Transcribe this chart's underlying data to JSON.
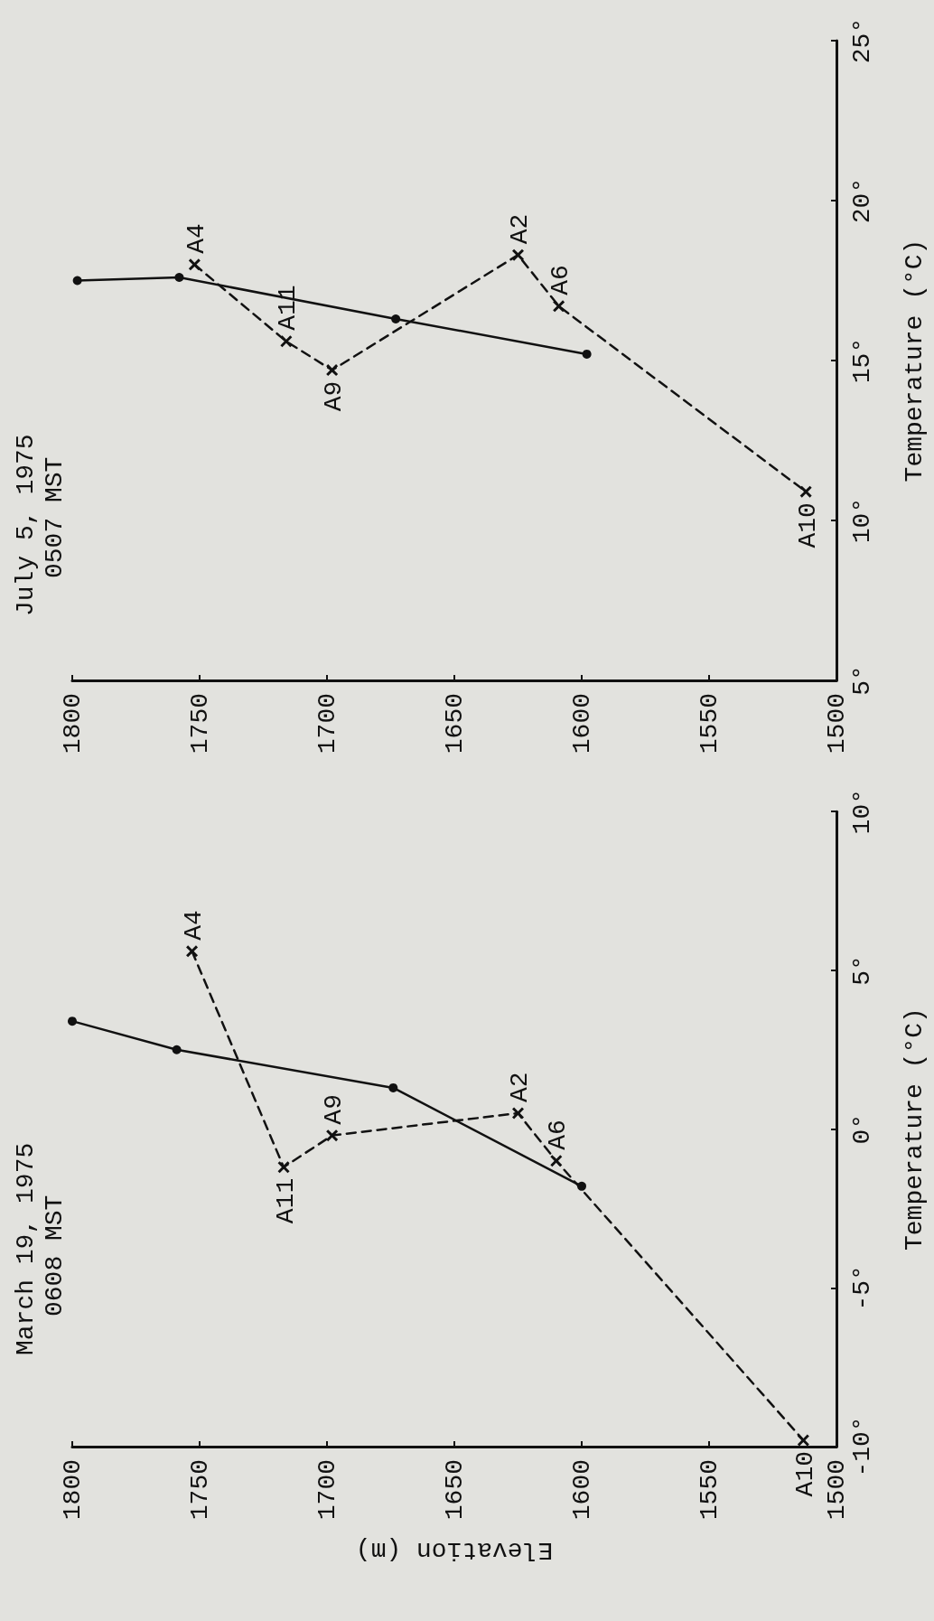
{
  "chart_data": [
    {
      "type": "line",
      "title": "March 19, 1975",
      "subtitle": "0608 MST",
      "xlabel": "Elevation (m)",
      "ylabel": "Temperature (°C)",
      "xlim": [
        1800,
        1500
      ],
      "xticks": [
        1800,
        1750,
        1700,
        1650,
        1600,
        1550,
        1500
      ],
      "ylim": [
        -10,
        10
      ],
      "yticks": [
        {
          "value": -10,
          "label": "-10°"
        },
        {
          "value": -5,
          "label": "-5°"
        },
        {
          "value": 0,
          "label": "0°"
        },
        {
          "value": 5,
          "label": "5°"
        },
        {
          "value": 10,
          "label": "10°"
        }
      ],
      "series": [
        {
          "color": "#111111",
          "marker": "circle",
          "line_style": "solid",
          "x": [
            1800,
            1759,
            1674,
            1600
          ],
          "values": [
            3.4,
            2.5,
            1.3,
            -1.8
          ]
        },
        {
          "color": "#111111",
          "marker": "cross",
          "line_style": "dashed",
          "x": [
            1753,
            1717,
            1698,
            1625,
            1610,
            1513
          ],
          "values": [
            5.6,
            -1.2,
            -0.2,
            0.5,
            -1.0,
            -9.8
          ]
        }
      ],
      "annotations": [
        {
          "text": "A4",
          "x": 1753,
          "y": 5.6
        },
        {
          "text": "A11",
          "x": 1717,
          "y": -1.2
        },
        {
          "text": "A9",
          "x": 1698,
          "y": -0.2
        },
        {
          "text": "A2",
          "x": 1625,
          "y": 0.5
        },
        {
          "text": "A6",
          "x": 1610,
          "y": -1.0
        },
        {
          "text": "A10",
          "x": 1513,
          "y": -9.8
        }
      ]
    },
    {
      "type": "line",
      "title": "July 5, 1975",
      "subtitle": "0507 MST",
      "ylabel": "Temperature (°C)",
      "xlim": [
        1800,
        1500
      ],
      "xticks": [
        1800,
        1750,
        1700,
        1650,
        1600,
        1550,
        1500
      ],
      "ylim": [
        5,
        25
      ],
      "yticks": [
        {
          "value": 5,
          "label": "5°"
        },
        {
          "value": 10,
          "label": "10°"
        },
        {
          "value": 15,
          "label": "15°"
        },
        {
          "value": 20,
          "label": "20°"
        },
        {
          "value": 25,
          "label": "25°"
        }
      ],
      "series": [
        {
          "color": "#111111",
          "marker": "circle",
          "line_style": "solid",
          "x": [
            1798,
            1758,
            1673,
            1598
          ],
          "values": [
            17.5,
            17.6,
            16.3,
            15.2
          ]
        },
        {
          "color": "#111111",
          "marker": "cross",
          "line_style": "dashed",
          "x": [
            1752,
            1716,
            1698,
            1625,
            1609,
            1512
          ],
          "values": [
            18.0,
            15.6,
            14.7,
            18.3,
            16.7,
            10.9
          ]
        }
      ],
      "annotations": [
        {
          "text": "A4",
          "x": 1752,
          "y": 18.0
        },
        {
          "text": "A11",
          "x": 1716,
          "y": 15.6
        },
        {
          "text": "A9",
          "x": 1698,
          "y": 14.7
        },
        {
          "text": "A2",
          "x": 1625,
          "y": 18.3
        },
        {
          "text": "A6",
          "x": 1609,
          "y": 16.7
        },
        {
          "text": "A10",
          "x": 1512,
          "y": 10.9
        }
      ]
    }
  ]
}
